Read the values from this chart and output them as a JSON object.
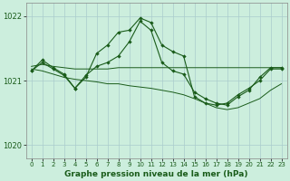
{
  "bg_color": "#cceedd",
  "line_color": "#1a5c1a",
  "grid_color": "#aacccc",
  "xlim": [
    -0.5,
    23.5
  ],
  "ylim": [
    1019.8,
    1022.2
  ],
  "yticks": [
    1020,
    1021,
    1022
  ],
  "xticks": [
    0,
    1,
    2,
    3,
    4,
    5,
    6,
    7,
    8,
    9,
    10,
    11,
    12,
    13,
    14,
    15,
    16,
    17,
    18,
    19,
    20,
    21,
    22,
    23
  ],
  "xlabel": "Graphe pression niveau de la mer (hPa)",
  "line_A_x": [
    0,
    1,
    2,
    3,
    4,
    5,
    6,
    7,
    8,
    9,
    10,
    11,
    12,
    13,
    14,
    15,
    16,
    17,
    18,
    19,
    20,
    21,
    22,
    23
  ],
  "line_A_y": [
    1021.15,
    1021.32,
    1021.2,
    1021.1,
    1020.88,
    1021.05,
    1021.42,
    1021.55,
    1021.75,
    1021.78,
    1021.97,
    1021.9,
    1021.55,
    1021.45,
    1021.38,
    1020.75,
    1020.65,
    1020.62,
    1020.65,
    1020.78,
    1020.88,
    1021.0,
    1021.18,
    1021.18
  ],
  "line_B_x": [
    0,
    1,
    2,
    3,
    4,
    5,
    6,
    7,
    8,
    9,
    10,
    11,
    12,
    13,
    14,
    15,
    16,
    17,
    18,
    19,
    20,
    21,
    22,
    23
  ],
  "line_B_y": [
    1021.15,
    1021.28,
    1021.18,
    1021.08,
    1020.88,
    1021.08,
    1021.22,
    1021.28,
    1021.38,
    1021.6,
    1021.92,
    1021.78,
    1021.28,
    1021.15,
    1021.1,
    1020.82,
    1020.72,
    1020.65,
    1020.62,
    1020.75,
    1020.85,
    1021.05,
    1021.2,
    1021.2
  ],
  "line_C_y": [
    1021.22,
    1021.25,
    1021.22,
    1021.2,
    1021.18,
    1021.18,
    1021.18,
    1021.18,
    1021.2,
    1021.2,
    1021.2,
    1021.2,
    1021.2,
    1021.2,
    1021.2,
    1021.2,
    1021.2,
    1021.2,
    1021.2,
    1021.2,
    1021.2,
    1021.2,
    1021.2,
    1021.2
  ],
  "line_D_y": [
    1021.18,
    1021.15,
    1021.1,
    1021.05,
    1021.02,
    1021.0,
    1020.98,
    1020.95,
    1020.95,
    1020.92,
    1020.9,
    1020.88,
    1020.85,
    1020.82,
    1020.78,
    1020.72,
    1020.65,
    1020.58,
    1020.55,
    1020.58,
    1020.65,
    1020.72,
    1020.85,
    1020.95
  ]
}
